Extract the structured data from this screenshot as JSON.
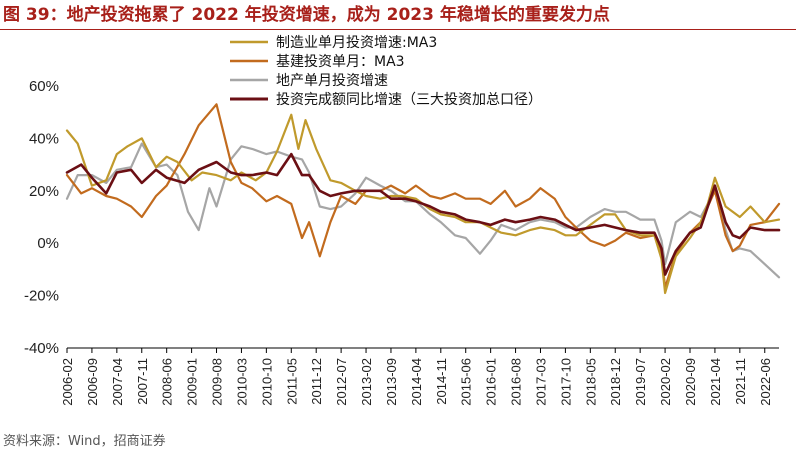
{
  "header": {
    "title": "图 39：地产投资拖累了 2022 年投资增速，成为 2023 年稳增长的重要发力点"
  },
  "footer": {
    "source": "资料来源：Wind，招商证券"
  },
  "chart_data": {
    "type": "line",
    "title": "",
    "xlabel": "",
    "ylabel": "",
    "ylim": [
      -40,
      60
    ],
    "yticks": [
      -40,
      -20,
      0,
      20,
      40,
      60
    ],
    "ytick_labels": [
      "-40%",
      "-20%",
      "0%",
      "20%",
      "40%",
      "60%"
    ],
    "xticks": [
      "2006-02",
      "2006-09",
      "2007-04",
      "2007-11",
      "2008-06",
      "2009-01",
      "2009-08",
      "2010-03",
      "2010-10",
      "2011-05",
      "2011-12",
      "2012-07",
      "2013-02",
      "2013-09",
      "2014-04",
      "2014-11",
      "2015-06",
      "2016-01",
      "2016-08",
      "2017-03",
      "2017-10",
      "2018-05",
      "2018-12",
      "2019-07",
      "2020-02",
      "2020-09",
      "2021-04",
      "2021-11",
      "2022-06"
    ],
    "x_start": "2006-02",
    "x_end": "2022-10",
    "legend_position": "top-center",
    "series": [
      {
        "name": "制造业单月投资增速:MA3",
        "color": "#c09a2c",
        "points": [
          [
            "2006-02",
            43
          ],
          [
            "2006-05",
            38
          ],
          [
            "2006-09",
            22
          ],
          [
            "2007-01",
            24
          ],
          [
            "2007-04",
            34
          ],
          [
            "2007-07",
            37
          ],
          [
            "2007-11",
            40
          ],
          [
            "2008-03",
            29
          ],
          [
            "2008-06",
            33
          ],
          [
            "2008-09",
            31
          ],
          [
            "2009-01",
            24
          ],
          [
            "2009-04",
            27
          ],
          [
            "2009-08",
            26
          ],
          [
            "2009-12",
            24
          ],
          [
            "2010-03",
            27
          ],
          [
            "2010-07",
            24
          ],
          [
            "2010-10",
            27
          ],
          [
            "2011-01",
            35
          ],
          [
            "2011-05",
            49
          ],
          [
            "2011-07",
            36
          ],
          [
            "2011-09",
            47
          ],
          [
            "2011-12",
            36
          ],
          [
            "2012-04",
            24
          ],
          [
            "2012-07",
            23
          ],
          [
            "2012-11",
            20
          ],
          [
            "2013-02",
            18
          ],
          [
            "2013-06",
            17
          ],
          [
            "2013-09",
            18
          ],
          [
            "2013-12",
            18
          ],
          [
            "2014-04",
            17
          ],
          [
            "2014-08",
            13
          ],
          [
            "2014-11",
            11
          ],
          [
            "2015-03",
            10
          ],
          [
            "2015-06",
            8
          ],
          [
            "2015-10",
            8
          ],
          [
            "2016-01",
            6
          ],
          [
            "2016-04",
            4
          ],
          [
            "2016-08",
            3
          ],
          [
            "2016-12",
            5
          ],
          [
            "2017-03",
            6
          ],
          [
            "2017-07",
            5
          ],
          [
            "2017-10",
            3
          ],
          [
            "2018-01",
            3
          ],
          [
            "2018-05",
            7
          ],
          [
            "2018-09",
            11
          ],
          [
            "2018-12",
            11
          ],
          [
            "2019-03",
            5
          ],
          [
            "2019-07",
            3
          ],
          [
            "2019-11",
            3
          ],
          [
            "2020-01",
            -6
          ],
          [
            "2020-02",
            -19
          ],
          [
            "2020-05",
            -5
          ],
          [
            "2020-09",
            2
          ],
          [
            "2020-12",
            8
          ],
          [
            "2021-02",
            15
          ],
          [
            "2021-04",
            25
          ],
          [
            "2021-07",
            14
          ],
          [
            "2021-11",
            10
          ],
          [
            "2022-02",
            14
          ],
          [
            "2022-06",
            8
          ],
          [
            "2022-10",
            9
          ]
        ]
      },
      {
        "name": "基建投资单月：MA3",
        "color": "#c26b1e",
        "points": [
          [
            "2006-02",
            26
          ],
          [
            "2006-06",
            19
          ],
          [
            "2006-09",
            21
          ],
          [
            "2007-01",
            18
          ],
          [
            "2007-04",
            17
          ],
          [
            "2007-08",
            14
          ],
          [
            "2007-11",
            10
          ],
          [
            "2008-03",
            18
          ],
          [
            "2008-06",
            22
          ],
          [
            "2008-11",
            34
          ],
          [
            "2009-03",
            45
          ],
          [
            "2009-08",
            53
          ],
          [
            "2009-12",
            31
          ],
          [
            "2010-03",
            23
          ],
          [
            "2010-06",
            21
          ],
          [
            "2010-10",
            16
          ],
          [
            "2011-01",
            18
          ],
          [
            "2011-05",
            15
          ],
          [
            "2011-08",
            2
          ],
          [
            "2011-10",
            8
          ],
          [
            "2012-01",
            -5
          ],
          [
            "2012-04",
            8
          ],
          [
            "2012-07",
            18
          ],
          [
            "2012-11",
            15
          ],
          [
            "2013-02",
            20
          ],
          [
            "2013-06",
            20
          ],
          [
            "2013-09",
            22
          ],
          [
            "2014-01",
            19
          ],
          [
            "2014-04",
            22
          ],
          [
            "2014-08",
            18
          ],
          [
            "2014-11",
            17
          ],
          [
            "2015-03",
            19
          ],
          [
            "2015-06",
            17
          ],
          [
            "2015-10",
            17
          ],
          [
            "2016-01",
            15
          ],
          [
            "2016-05",
            20
          ],
          [
            "2016-08",
            14
          ],
          [
            "2016-12",
            17
          ],
          [
            "2017-03",
            21
          ],
          [
            "2017-07",
            17
          ],
          [
            "2017-10",
            10
          ],
          [
            "2018-01",
            6
          ],
          [
            "2018-05",
            1
          ],
          [
            "2018-09",
            -1
          ],
          [
            "2018-12",
            1
          ],
          [
            "2019-03",
            4
          ],
          [
            "2019-07",
            2
          ],
          [
            "2019-11",
            3
          ],
          [
            "2020-01",
            -4
          ],
          [
            "2020-02",
            -17
          ],
          [
            "2020-05",
            -4
          ],
          [
            "2020-09",
            4
          ],
          [
            "2020-12",
            8
          ],
          [
            "2021-02",
            14
          ],
          [
            "2021-04",
            20
          ],
          [
            "2021-07",
            3
          ],
          [
            "2021-09",
            -3
          ],
          [
            "2021-11",
            -1
          ],
          [
            "2022-02",
            7
          ],
          [
            "2022-06",
            8
          ],
          [
            "2022-10",
            15
          ]
        ]
      },
      {
        "name": "地产单月投资增速",
        "color": "#a6a6a6",
        "points": [
          [
            "2006-02",
            17
          ],
          [
            "2006-05",
            26
          ],
          [
            "2006-09",
            26
          ],
          [
            "2007-01",
            23
          ],
          [
            "2007-04",
            28
          ],
          [
            "2007-08",
            29
          ],
          [
            "2007-11",
            38
          ],
          [
            "2008-03",
            29
          ],
          [
            "2008-06",
            30
          ],
          [
            "2008-09",
            26
          ],
          [
            "2008-12",
            12
          ],
          [
            "2009-03",
            5
          ],
          [
            "2009-06",
            21
          ],
          [
            "2009-08",
            14
          ],
          [
            "2009-12",
            32
          ],
          [
            "2010-03",
            37
          ],
          [
            "2010-06",
            36
          ],
          [
            "2010-10",
            34
          ],
          [
            "2011-01",
            35
          ],
          [
            "2011-05",
            33
          ],
          [
            "2011-08",
            32
          ],
          [
            "2011-10",
            27
          ],
          [
            "2012-01",
            14
          ],
          [
            "2012-04",
            13
          ],
          [
            "2012-07",
            14
          ],
          [
            "2012-11",
            19
          ],
          [
            "2013-02",
            25
          ],
          [
            "2013-06",
            22
          ],
          [
            "2013-09",
            20
          ],
          [
            "2014-01",
            16
          ],
          [
            "2014-04",
            16
          ],
          [
            "2014-08",
            11
          ],
          [
            "2014-11",
            8
          ],
          [
            "2015-03",
            3
          ],
          [
            "2015-06",
            2
          ],
          [
            "2015-10",
            -4
          ],
          [
            "2016-01",
            1
          ],
          [
            "2016-04",
            7
          ],
          [
            "2016-08",
            5
          ],
          [
            "2016-12",
            8
          ],
          [
            "2017-03",
            9
          ],
          [
            "2017-07",
            8
          ],
          [
            "2017-10",
            6
          ],
          [
            "2018-01",
            6
          ],
          [
            "2018-05",
            10
          ],
          [
            "2018-09",
            13
          ],
          [
            "2018-12",
            12
          ],
          [
            "2019-03",
            12
          ],
          [
            "2019-07",
            9
          ],
          [
            "2019-11",
            9
          ],
          [
            "2020-01",
            1
          ],
          [
            "2020-02",
            -8
          ],
          [
            "2020-05",
            8
          ],
          [
            "2020-09",
            12
          ],
          [
            "2020-12",
            10
          ],
          [
            "2021-02",
            15
          ],
          [
            "2021-04",
            22
          ],
          [
            "2021-07",
            5
          ],
          [
            "2021-09",
            -3
          ],
          [
            "2021-11",
            -2
          ],
          [
            "2022-02",
            -3
          ],
          [
            "2022-06",
            -8
          ],
          [
            "2022-10",
            -13
          ]
        ]
      },
      {
        "name": "投资完成额同比增速（三大投资加总口径）",
        "color": "#6b0f14",
        "points": [
          [
            "2006-02",
            27
          ],
          [
            "2006-06",
            30
          ],
          [
            "2006-09",
            25
          ],
          [
            "2007-01",
            19
          ],
          [
            "2007-04",
            27
          ],
          [
            "2007-08",
            28
          ],
          [
            "2007-11",
            23
          ],
          [
            "2008-03",
            28
          ],
          [
            "2008-06",
            25
          ],
          [
            "2008-11",
            23
          ],
          [
            "2009-03",
            28
          ],
          [
            "2009-08",
            31
          ],
          [
            "2009-12",
            27
          ],
          [
            "2010-03",
            26
          ],
          [
            "2010-06",
            26
          ],
          [
            "2010-10",
            27
          ],
          [
            "2011-01",
            26
          ],
          [
            "2011-05",
            34
          ],
          [
            "2011-08",
            26
          ],
          [
            "2011-10",
            26
          ],
          [
            "2012-01",
            20
          ],
          [
            "2012-04",
            18
          ],
          [
            "2012-07",
            19
          ],
          [
            "2012-11",
            20
          ],
          [
            "2013-02",
            20
          ],
          [
            "2013-06",
            20
          ],
          [
            "2013-09",
            17
          ],
          [
            "2014-01",
            17
          ],
          [
            "2014-04",
            16
          ],
          [
            "2014-08",
            14
          ],
          [
            "2014-11",
            12
          ],
          [
            "2015-03",
            11
          ],
          [
            "2015-06",
            9
          ],
          [
            "2015-10",
            8
          ],
          [
            "2016-01",
            7
          ],
          [
            "2016-05",
            9
          ],
          [
            "2016-08",
            8
          ],
          [
            "2016-12",
            9
          ],
          [
            "2017-03",
            10
          ],
          [
            "2017-07",
            9
          ],
          [
            "2017-10",
            7
          ],
          [
            "2018-01",
            5
          ],
          [
            "2018-05",
            6
          ],
          [
            "2018-09",
            7
          ],
          [
            "2018-12",
            6
          ],
          [
            "2019-03",
            5
          ],
          [
            "2019-07",
            4
          ],
          [
            "2019-11",
            4
          ],
          [
            "2020-01",
            -2
          ],
          [
            "2020-02",
            -12
          ],
          [
            "2020-05",
            -3
          ],
          [
            "2020-09",
            4
          ],
          [
            "2020-12",
            6
          ],
          [
            "2021-02",
            14
          ],
          [
            "2021-04",
            22
          ],
          [
            "2021-07",
            8
          ],
          [
            "2021-09",
            3
          ],
          [
            "2021-11",
            2
          ],
          [
            "2022-02",
            6
          ],
          [
            "2022-06",
            5
          ],
          [
            "2022-10",
            5
          ]
        ]
      }
    ]
  }
}
